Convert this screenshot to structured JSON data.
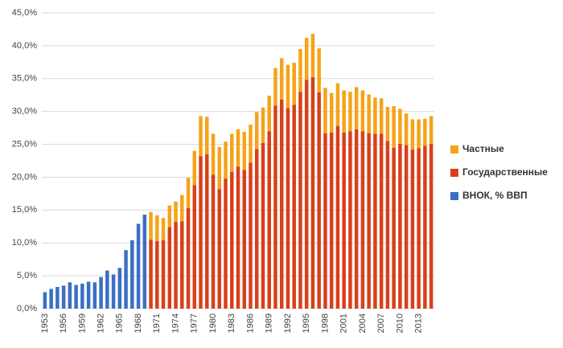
{
  "chart_data": {
    "type": "bar",
    "stacked": true,
    "grid": true,
    "legend": "right",
    "categories": [
      "1953",
      null,
      null,
      "1956",
      null,
      null,
      "1959",
      null,
      null,
      "1962",
      null,
      null,
      "1965",
      null,
      null,
      "1968",
      null,
      null,
      "1971",
      null,
      null,
      "1974",
      null,
      null,
      "1977",
      null,
      null,
      "1980",
      null,
      null,
      "1983",
      null,
      null,
      "1986",
      null,
      null,
      "1989",
      null,
      null,
      "1992",
      null,
      null,
      "1995",
      null,
      null,
      "1998",
      null,
      null,
      "2001",
      null,
      null,
      "2004",
      null,
      null,
      "2007",
      null,
      null,
      "2010",
      null,
      null,
      "2013",
      null,
      null
    ],
    "series": [
      {
        "name": "ВНОК, % ВВП",
        "color": "#3a6fc4",
        "values": [
          2.5,
          3.0,
          3.3,
          3.5,
          4.0,
          3.6,
          3.8,
          4.1,
          4.0,
          4.8,
          5.8,
          5.2,
          6.2,
          8.9,
          10.4,
          12.9,
          14.3,
          null,
          null,
          null,
          null,
          null,
          null,
          null,
          null,
          null,
          null,
          null,
          null,
          null,
          null,
          null,
          null,
          null,
          null,
          null,
          null,
          null,
          null,
          null,
          null,
          null,
          null,
          null,
          null,
          null,
          null,
          null,
          null,
          null,
          null,
          null,
          null,
          null,
          null,
          null,
          null,
          null,
          null,
          null,
          null,
          null,
          null
        ]
      },
      {
        "name": "Государственные",
        "color": "#d9401a",
        "values": [
          null,
          null,
          null,
          null,
          null,
          null,
          null,
          null,
          null,
          null,
          null,
          null,
          null,
          null,
          null,
          null,
          null,
          10.5,
          10.3,
          10.4,
          12.4,
          13.2,
          13.3,
          15.3,
          18.8,
          23.2,
          23.5,
          20.4,
          18.2,
          19.8,
          20.8,
          21.6,
          21.1,
          22.2,
          24.3,
          25.2,
          27.0,
          30.9,
          31.8,
          30.5,
          31.0,
          33.0,
          34.8,
          35.2,
          32.9,
          26.7,
          26.8,
          27.8,
          26.8,
          27.0,
          27.3,
          27.0,
          26.7,
          26.6,
          26.6,
          25.5,
          24.5,
          25.1,
          24.9,
          24.2,
          24.4,
          24.8,
          25.1
        ]
      },
      {
        "name": "Частные",
        "color": "#f5a31a",
        "values": [
          null,
          null,
          null,
          null,
          null,
          null,
          null,
          null,
          null,
          null,
          null,
          null,
          null,
          null,
          null,
          null,
          null,
          4.2,
          3.9,
          3.4,
          3.3,
          3.1,
          4.0,
          4.6,
          5.2,
          6.1,
          5.7,
          6.2,
          6.4,
          5.6,
          5.8,
          5.7,
          5.8,
          5.8,
          5.6,
          5.4,
          5.4,
          5.7,
          6.3,
          6.6,
          6.4,
          6.5,
          6.4,
          6.6,
          6.7,
          6.9,
          6.0,
          6.5,
          6.4,
          6.0,
          6.4,
          6.2,
          5.9,
          5.5,
          5.4,
          5.2,
          6.3,
          5.3,
          4.8,
          4.6,
          4.4,
          4.1,
          4.2
        ]
      }
    ],
    "ylim": [
      0,
      45
    ],
    "yticks": [
      {
        "value": 0,
        "label": "0,0%"
      },
      {
        "value": 5,
        "label": "5,0%"
      },
      {
        "value": 10,
        "label": "10,0%"
      },
      {
        "value": 15,
        "label": "15,0%"
      },
      {
        "value": 20,
        "label": "20,0%"
      },
      {
        "value": 25,
        "label": "25,0%"
      },
      {
        "value": 30,
        "label": "30,0%"
      },
      {
        "value": 35,
        "label": "35,0%"
      },
      {
        "value": 40,
        "label": "40,0%"
      },
      {
        "value": 45,
        "label": "45,0%"
      }
    ]
  }
}
